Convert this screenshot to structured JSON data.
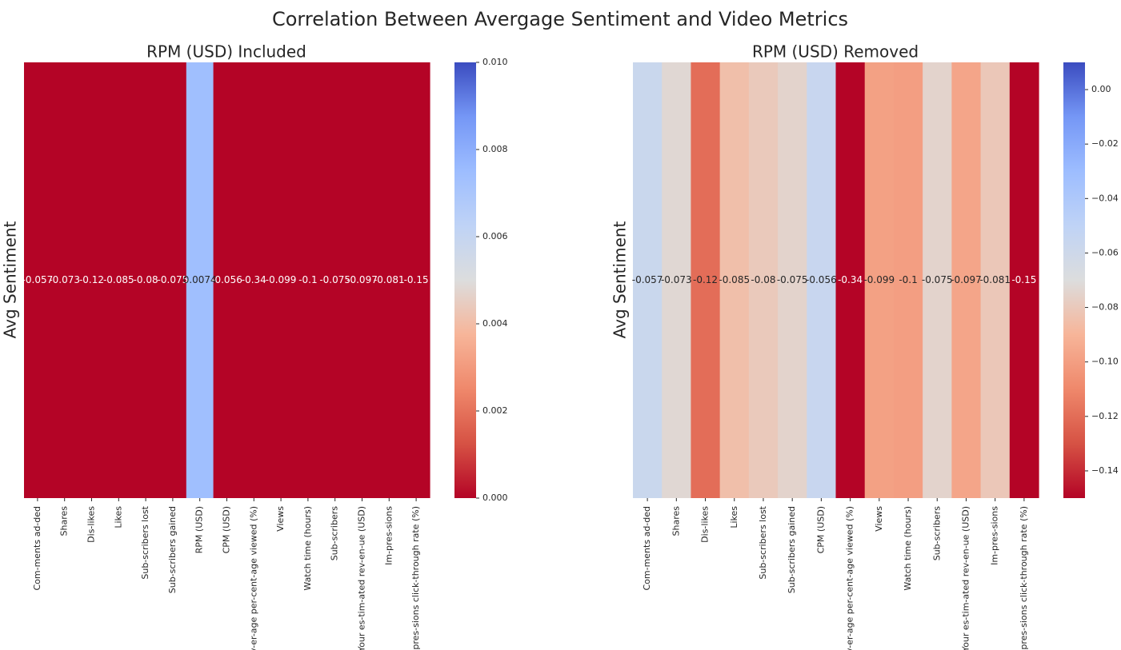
{
  "chart_data": [
    {
      "type": "heatmap",
      "title": "RPM (USD) Included",
      "ylabel": "Avg Sentiment",
      "categories": [
        "Com-ments ad-ded",
        "Shares",
        "Dis-likes",
        "Likes",
        "Sub-scribers lost",
        "Sub-scribers gained",
        "RPM (USD)",
        "CPM (USD)",
        "Av-er-age per-cent-age viewed (%)",
        "Views",
        "Watch time (hours)",
        "Sub-scribers",
        "Your es-tim-ated rev-en-ue (USD)",
        "Im-pres-sions",
        "Im-pres-sions click-through rate (%)"
      ],
      "values": [
        -0.057,
        -0.073,
        -0.12,
        -0.085,
        -0.08,
        -0.075,
        0.0074,
        -0.056,
        -0.34,
        -0.099,
        -0.1,
        -0.075,
        -0.097,
        -0.081,
        -0.15
      ],
      "labels": [
        "-0.057",
        "-0.073",
        "-0.12",
        "-0.085",
        "-0.08",
        "-0.075",
        "0.0074",
        "-0.056",
        "-0.34",
        "-0.099",
        "-0.1",
        "-0.075",
        "-0.097",
        "-0.081",
        "-0.15"
      ],
      "colorbar": {
        "vmin": 0.0,
        "vmax": 0.01,
        "ticks": [
          0.0,
          0.002,
          0.004,
          0.006,
          0.008,
          0.01
        ],
        "tick_labels": [
          "0.000",
          "0.002",
          "0.004",
          "0.006",
          "0.008",
          "0.010"
        ]
      },
      "colormap": "coolwarm_r"
    },
    {
      "type": "heatmap",
      "title": "RPM (USD) Removed",
      "ylabel": "Avg Sentiment",
      "categories": [
        "Com-ments ad-ded",
        "Shares",
        "Dis-likes",
        "Likes",
        "Sub-scribers lost",
        "Sub-scribers gained",
        "CPM (USD)",
        "Av-er-age per-cent-age viewed (%)",
        "Views",
        "Watch time (hours)",
        "Sub-scribers",
        "Your es-tim-ated rev-en-ue (USD)",
        "Im-pres-sions",
        "Im-pres-sions click-through rate (%)"
      ],
      "values": [
        -0.057,
        -0.073,
        -0.12,
        -0.085,
        -0.08,
        -0.075,
        -0.056,
        -0.34,
        -0.099,
        -0.1,
        -0.075,
        -0.097,
        -0.081,
        -0.15
      ],
      "labels": [
        "-0.057",
        "-0.073",
        "-0.12",
        "-0.085",
        "-0.08",
        "-0.075",
        "-0.056",
        "-0.34",
        "-0.099",
        "-0.1",
        "-0.075",
        "-0.097",
        "-0.081",
        "-0.15"
      ],
      "colorbar": {
        "vmin": -0.15,
        "vmax": 0.01,
        "ticks": [
          0.0,
          -0.02,
          -0.04,
          -0.06,
          -0.08,
          -0.1,
          -0.12,
          -0.14
        ],
        "tick_labels": [
          "0.00",
          "−0.02",
          "−0.04",
          "−0.06",
          "−0.08",
          "−0.10",
          "−0.12",
          "−0.14"
        ]
      },
      "colormap": "coolwarm_r"
    }
  ],
  "figure": {
    "suptitle": "Correlation Between Avergage Sentiment and Video Metrics"
  },
  "colors": {
    "text": "#262626",
    "dark_label_text": "#262626",
    "light_label_text": "#ffffff"
  }
}
